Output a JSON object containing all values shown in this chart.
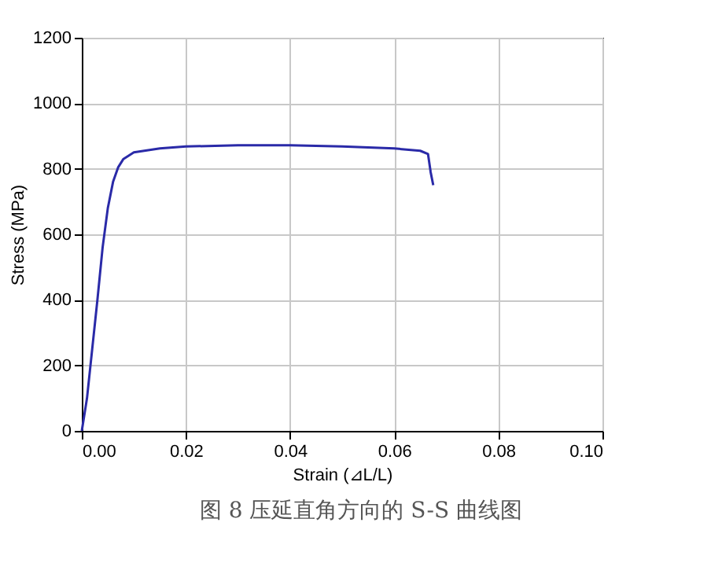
{
  "chart_data": {
    "type": "line",
    "xlabel": "Strain (⊿L/L)",
    "ylabel": "Stress (MPa)",
    "annotations": [
      "图 8 压延直角方向的 S-S 曲线图"
    ],
    "x": [
      0,
      0.001,
      0.002,
      0.003,
      0.004,
      0.005,
      0.006,
      0.007,
      0.008,
      0.01,
      0.015,
      0.02,
      0.03,
      0.04,
      0.05,
      0.06,
      0.065,
      0.0665,
      0.067,
      0.0675
    ],
    "series": [
      {
        "color": "#2a2aa8",
        "values": [
          0,
          100,
          250,
          400,
          560,
          680,
          760,
          805,
          830,
          850,
          862,
          868,
          872,
          872,
          868,
          862,
          855,
          845,
          790,
          750
        ]
      }
    ],
    "xlim": [
      0,
      0.1
    ],
    "xticks": [
      {
        "value": 0,
        "label": "0.00"
      },
      {
        "value": 0.02,
        "label": "0.02"
      },
      {
        "value": 0.04,
        "label": "0.04"
      },
      {
        "value": 0.06,
        "label": "0.06"
      },
      {
        "value": 0.08,
        "label": "0.08"
      },
      {
        "value": 0.1,
        "label": "0.10"
      }
    ],
    "ylim": [
      0,
      1200
    ],
    "yticks": [
      0,
      200,
      400,
      600,
      800,
      1000,
      1200
    ],
    "grid": true,
    "marker": "none",
    "line_style": "solid"
  }
}
